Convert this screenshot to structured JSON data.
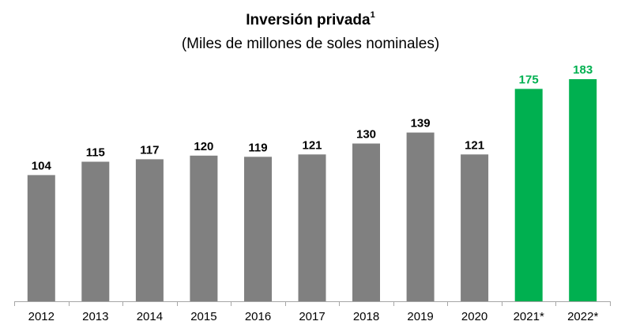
{
  "chart_data": {
    "type": "bar",
    "title": "Inversión privada",
    "title_superscript": "1",
    "subtitle": "(Miles de millones de soles nominales)",
    "categories": [
      "2012",
      "2013",
      "2014",
      "2015",
      "2016",
      "2017",
      "2018",
      "2019",
      "2020",
      "2021*",
      "2022*"
    ],
    "values": [
      104,
      115,
      117,
      120,
      119,
      121,
      130,
      139,
      121,
      175,
      183
    ],
    "highlighted": [
      false,
      false,
      false,
      false,
      false,
      false,
      false,
      false,
      false,
      true,
      true
    ],
    "xlabel": "",
    "ylabel": "",
    "ylim": [
      0,
      190
    ],
    "grid": false,
    "legend": "none"
  },
  "colors": {
    "actual": "#808080",
    "projected": "#00b050",
    "actual_label": "#000000",
    "projected_label": "#00b050",
    "axis": "#a6a6a6"
  }
}
